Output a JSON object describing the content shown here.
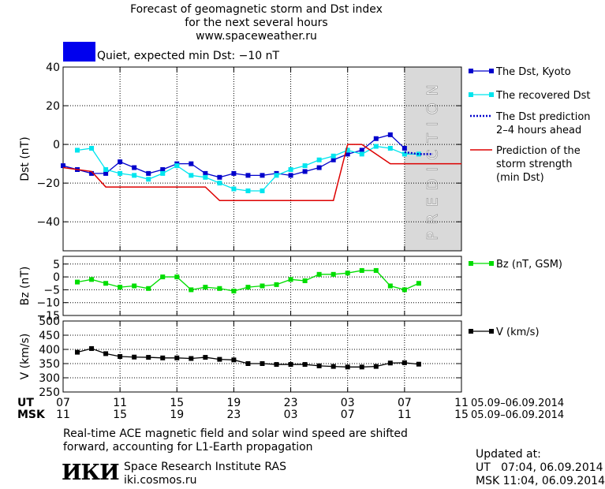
{
  "header": {
    "title_line1": "Forecast of geomagnetic storm and Dst index",
    "title_line2": "for the next several hours",
    "title_line3": "www.spaceweather.ru"
  },
  "status": {
    "text": "Quiet, expected min Dst: −10 nT",
    "color": "#0000ee"
  },
  "footer": {
    "note_line1": "Real-time ACE magnetic field and solar wind speed are shifted",
    "note_line2": "forward, accounting for L1-Earth propagation",
    "logo_text": "ИКИ",
    "institute": "Space Research Institute RAS",
    "site": "iki.cosmos.ru",
    "updated_label": "Updated at:",
    "updated_ut": "UT   07:04, 06.09.2014",
    "updated_msk": "MSK 11:04, 06.09.2014"
  },
  "chart_data": {
    "type": "line",
    "x_range": [
      7,
      35
    ],
    "time_axis": {
      "ut_label": "UT",
      "msk_label": "MSK",
      "ut_ticks": [
        "07",
        "11",
        "15",
        "19",
        "23",
        "03",
        "07",
        "11"
      ],
      "msk_ticks": [
        "11",
        "15",
        "19",
        "23",
        "03",
        "07",
        "11",
        "15"
      ],
      "tick_values": [
        7,
        11,
        15,
        19,
        23,
        27,
        31,
        35
      ],
      "ut_date_range": "05.09–06.09.2014",
      "msk_date_range": "05.09–06.09.2014"
    },
    "prediction_band": {
      "from": 31,
      "to": 35,
      "label": "PREDICTION",
      "color": "#d9d9d9"
    },
    "panels": [
      {
        "id": "dst",
        "ylabel": "Dst (nT)",
        "ylim": [
          -55,
          40
        ],
        "yticks": [
          40,
          20,
          0,
          -20,
          -40
        ],
        "ytick_labels": [
          "40",
          "20",
          "0",
          "−20",
          "−40"
        ],
        "series": [
          {
            "name": "The Dst, Kyoto",
            "color": "#0000cc",
            "marker": "square",
            "x": [
              7,
              8,
              9,
              10,
              11,
              12,
              13,
              14,
              15,
              16,
              17,
              18,
              19,
              20,
              21,
              22,
              23,
              24,
              25,
              26,
              27,
              28,
              29,
              30,
              31
            ],
            "y": [
              -11,
              -13,
              -15,
              -15,
              -9,
              -12,
              -15,
              -13,
              -10,
              -10,
              -15,
              -17,
              -15,
              -16,
              -16,
              -15,
              -16,
              -14,
              -12,
              -8,
              -5,
              -3,
              3,
              5,
              -2
            ]
          },
          {
            "name": "The recovered Dst",
            "color": "#00e5ee",
            "marker": "square",
            "x": [
              8,
              9,
              10,
              11,
              12,
              13,
              14,
              15,
              16,
              17,
              18,
              19,
              20,
              21,
              22,
              23,
              24,
              25,
              26,
              27,
              28,
              29,
              30,
              31,
              32
            ],
            "y": [
              -3,
              -2,
              -13,
              -15,
              -16,
              -18,
              -15,
              -11,
              -16,
              -17,
              -20,
              -23,
              -24,
              -24,
              -16,
              -13,
              -11,
              -8,
              -6,
              -3,
              -5,
              -1,
              -2,
              -5,
              -5
            ]
          },
          {
            "name": "The Dst prediction 2–4 hours ahead",
            "legend_line1": "The Dst prediction",
            "legend_line2": "2–4 hours ahead",
            "color": "#0000cc",
            "dotted": true,
            "x": [
              31,
              32,
              33
            ],
            "y": [
              -4,
              -5,
              -5
            ]
          },
          {
            "name": "Prediction of the storm strength (min Dst)",
            "legend_line1": "Prediction of the",
            "legend_line2": "storm strength",
            "legend_line3": "(min Dst)",
            "color": "#dd0000",
            "step": true,
            "x": [
              7,
              9,
              10,
              17,
              18,
              26,
              27,
              28,
              30,
              35
            ],
            "y": [
              -12,
              -14,
              -22,
              -22,
              -29,
              -29,
              0,
              0,
              -10,
              -10
            ]
          }
        ]
      },
      {
        "id": "bz",
        "ylabel": "Bz (nT)",
        "ylim": [
          -15,
          8
        ],
        "yticks": [
          5,
          0,
          -5,
          -10,
          -15
        ],
        "ytick_labels": [
          "5",
          "0",
          "−5",
          "−10",
          "−15"
        ],
        "series": [
          {
            "name": "Bz (nT, GSM)",
            "color": "#00dd00",
            "marker": "square",
            "x": [
              8,
              9,
              10,
              11,
              12,
              13,
              14,
              15,
              16,
              17,
              18,
              19,
              20,
              21,
              22,
              23,
              24,
              25,
              26,
              27,
              28,
              29,
              30,
              31,
              32
            ],
            "y": [
              -2,
              -1,
              -2.5,
              -4,
              -3.5,
              -4.5,
              0,
              0,
              -5,
              -4,
              -4.5,
              -5.5,
              -4,
              -3.5,
              -3,
              -1,
              -1.5,
              1,
              1,
              1.5,
              2.5,
              2.5,
              -3.5,
              -5,
              -2.5
            ]
          }
        ]
      },
      {
        "id": "v",
        "ylabel": "V (km/s)",
        "ylim": [
          250,
          500
        ],
        "yticks": [
          500,
          450,
          400,
          350,
          300,
          250
        ],
        "ytick_labels": [
          "500",
          "450",
          "400",
          "350",
          "300",
          "250"
        ],
        "series": [
          {
            "name": "V (km/s)",
            "color": "#000000",
            "marker": "square",
            "x": [
              8,
              9,
              10,
              11,
              12,
              13,
              14,
              15,
              16,
              17,
              18,
              19,
              20,
              21,
              22,
              23,
              24,
              25,
              26,
              27,
              28,
              29,
              30,
              31,
              32
            ],
            "y": [
              390,
              403,
              385,
              375,
              373,
              372,
              370,
              370,
              368,
              372,
              365,
              363,
              350,
              350,
              347,
              347,
              347,
              342,
              340,
              338,
              338,
              340,
              352,
              353,
              348
            ]
          }
        ]
      }
    ]
  }
}
